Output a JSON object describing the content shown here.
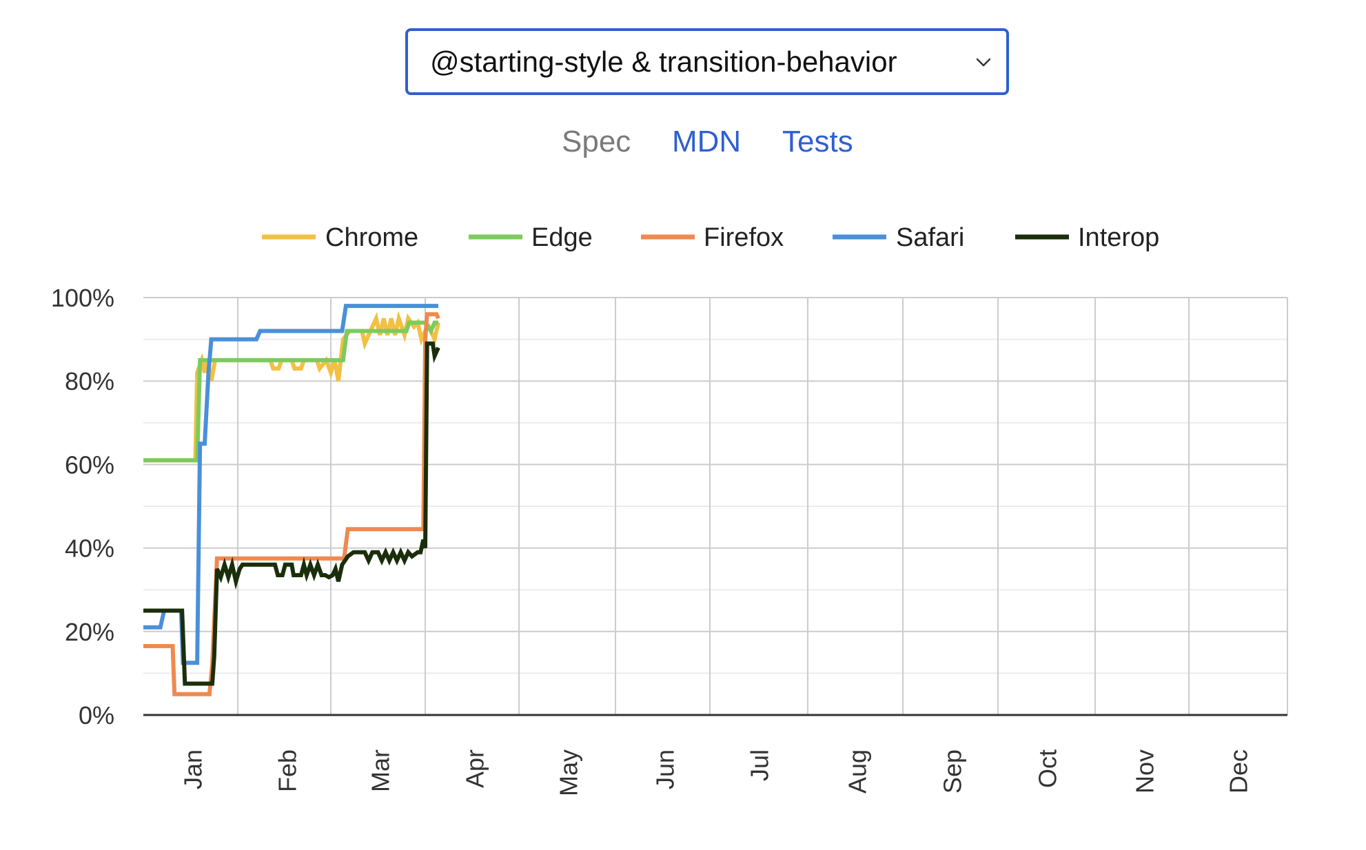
{
  "feature_select": {
    "selected": "@starting-style & transition-behavior"
  },
  "links": {
    "spec": "Spec",
    "mdn": "MDN",
    "tests": "Tests"
  },
  "chart_data": {
    "type": "line",
    "y_ticks": [
      "0%",
      "20%",
      "40%",
      "60%",
      "80%",
      "100%"
    ],
    "x_ticks": [
      "Jan",
      "Feb",
      "Mar",
      "Apr",
      "May",
      "Jun",
      "Jul",
      "Aug",
      "Sep",
      "Oct",
      "Nov",
      "Dec"
    ],
    "ylim": [
      0,
      100
    ],
    "xlim": [
      1,
      13
    ],
    "grid": true,
    "legend_position": "top",
    "series": [
      {
        "name": "Chrome",
        "color": "#f2c043",
        "points": [
          [
            1.0,
            61
          ],
          [
            1.55,
            61
          ],
          [
            1.57,
            82
          ],
          [
            1.62,
            85
          ],
          [
            1.65,
            82
          ],
          [
            1.68,
            85
          ],
          [
            1.72,
            80
          ],
          [
            1.76,
            85
          ],
          [
            2.35,
            85
          ],
          [
            2.38,
            83
          ],
          [
            2.44,
            83
          ],
          [
            2.47,
            85
          ],
          [
            2.58,
            85
          ],
          [
            2.61,
            83
          ],
          [
            2.68,
            83
          ],
          [
            2.71,
            85
          ],
          [
            2.85,
            85
          ],
          [
            2.88,
            83
          ],
          [
            2.95,
            85
          ],
          [
            3.0,
            82
          ],
          [
            3.04,
            85
          ],
          [
            3.08,
            80
          ],
          [
            3.13,
            90
          ],
          [
            3.2,
            92
          ],
          [
            3.33,
            92
          ],
          [
            3.36,
            89
          ],
          [
            3.42,
            92
          ],
          [
            3.48,
            95
          ],
          [
            3.52,
            91
          ],
          [
            3.56,
            95
          ],
          [
            3.6,
            91
          ],
          [
            3.64,
            95
          ],
          [
            3.68,
            91
          ],
          [
            3.72,
            95
          ],
          [
            3.78,
            91
          ],
          [
            3.82,
            95
          ],
          [
            3.88,
            93
          ],
          [
            3.92,
            94
          ],
          [
            3.96,
            90
          ],
          [
            4.0,
            92
          ],
          [
            4.04,
            93
          ],
          [
            4.1,
            90
          ],
          [
            4.14,
            94
          ]
        ]
      },
      {
        "name": "Edge",
        "color": "#7ccb5e",
        "points": [
          [
            1.0,
            61
          ],
          [
            1.57,
            61
          ],
          [
            1.6,
            85
          ],
          [
            2.65,
            85
          ],
          [
            2.68,
            85
          ],
          [
            2.75,
            85
          ],
          [
            3.13,
            85
          ],
          [
            3.17,
            92
          ],
          [
            3.8,
            92
          ],
          [
            3.83,
            94
          ],
          [
            4.0,
            94
          ],
          [
            4.06,
            92
          ],
          [
            4.1,
            94
          ],
          [
            4.14,
            94
          ]
        ]
      },
      {
        "name": "Firefox",
        "color": "#ee8a4f",
        "points": [
          [
            1.0,
            16.5
          ],
          [
            1.31,
            16.5
          ],
          [
            1.33,
            5
          ],
          [
            1.7,
            5
          ],
          [
            1.73,
            12
          ],
          [
            1.78,
            37.5
          ],
          [
            3.14,
            37.5
          ],
          [
            3.18,
            44.5
          ],
          [
            3.98,
            44.5
          ],
          [
            4.0,
            90
          ],
          [
            4.02,
            96
          ],
          [
            4.12,
            96
          ],
          [
            4.14,
            95
          ]
        ]
      },
      {
        "name": "Safari",
        "color": "#4a90d9",
        "points": [
          [
            1.0,
            21
          ],
          [
            1.18,
            21
          ],
          [
            1.22,
            25
          ],
          [
            1.4,
            25
          ],
          [
            1.42,
            12.5
          ],
          [
            1.57,
            12.5
          ],
          [
            1.6,
            65
          ],
          [
            1.65,
            65
          ],
          [
            1.69,
            82
          ],
          [
            1.72,
            90
          ],
          [
            2.2,
            90
          ],
          [
            2.24,
            92
          ],
          [
            3.12,
            92
          ],
          [
            3.16,
            98
          ],
          [
            4.14,
            98
          ]
        ]
      },
      {
        "name": "Interop",
        "color": "#1b2e0b",
        "points": [
          [
            1.0,
            25
          ],
          [
            1.41,
            25
          ],
          [
            1.44,
            7.5
          ],
          [
            1.73,
            7.5
          ],
          [
            1.75,
            14
          ],
          [
            1.78,
            35
          ],
          [
            1.82,
            33
          ],
          [
            1.86,
            36
          ],
          [
            1.9,
            33
          ],
          [
            1.94,
            36
          ],
          [
            1.98,
            32
          ],
          [
            2.02,
            35
          ],
          [
            2.05,
            36
          ],
          [
            2.4,
            36
          ],
          [
            2.43,
            33.5
          ],
          [
            2.48,
            33.5
          ],
          [
            2.51,
            36
          ],
          [
            2.58,
            36
          ],
          [
            2.6,
            33.5
          ],
          [
            2.68,
            33.5
          ],
          [
            2.71,
            36
          ],
          [
            2.74,
            33.5
          ],
          [
            2.78,
            36
          ],
          [
            2.82,
            33.5
          ],
          [
            2.86,
            36
          ],
          [
            2.9,
            33.5
          ],
          [
            2.94,
            33.5
          ],
          [
            2.98,
            33
          ],
          [
            3.02,
            33.5
          ],
          [
            3.05,
            35
          ],
          [
            3.08,
            32
          ],
          [
            3.12,
            36
          ],
          [
            3.18,
            38
          ],
          [
            3.24,
            39
          ],
          [
            3.36,
            39
          ],
          [
            3.4,
            37
          ],
          [
            3.44,
            39
          ],
          [
            3.5,
            39
          ],
          [
            3.54,
            37
          ],
          [
            3.58,
            39
          ],
          [
            3.62,
            37
          ],
          [
            3.66,
            39
          ],
          [
            3.7,
            37
          ],
          [
            3.74,
            39
          ],
          [
            3.78,
            37
          ],
          [
            3.82,
            39
          ],
          [
            3.86,
            38
          ],
          [
            3.92,
            39
          ],
          [
            3.95,
            39
          ],
          [
            3.98,
            42
          ],
          [
            4.0,
            40
          ],
          [
            4.02,
            89
          ],
          [
            4.08,
            89
          ],
          [
            4.1,
            86
          ],
          [
            4.14,
            88
          ]
        ]
      }
    ]
  }
}
